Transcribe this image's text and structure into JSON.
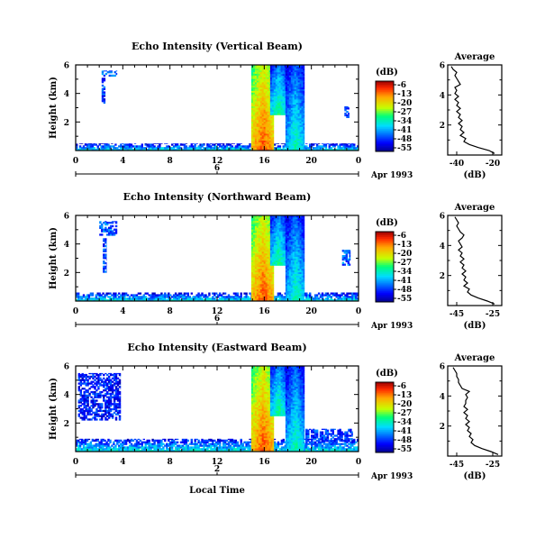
{
  "chart_data": [
    {
      "type": "heatmap",
      "title": "Echo Intensity (Vertical Beam)",
      "ylabel": "Height (km)",
      "xlabel": "",
      "xlim": [
        0,
        24
      ],
      "ylim": [
        0,
        6
      ],
      "xticks": [
        "0",
        "4",
        "8",
        "12",
        "16",
        "20",
        "0"
      ],
      "yticks": [
        "6",
        "4",
        "2"
      ],
      "date_marker_tick": "6",
      "date_label": "Apr 1993",
      "colorbar": {
        "unit": "(dB)",
        "ticks": [
          "-6",
          "-13",
          "-20",
          "-27",
          "-34",
          "-41",
          "-48",
          "-55"
        ],
        "range": [
          -55,
          -6
        ]
      },
      "average": {
        "title": "Average",
        "xlabel": "(dB)",
        "xticks": [
          "-40",
          "-20"
        ],
        "xlim": [
          -45,
          -15
        ],
        "yticks": [
          "6",
          "4",
          "2"
        ],
        "ylim": [
          0,
          6
        ],
        "profile": [
          [
            -19,
            0.1
          ],
          [
            -22,
            0.3
          ],
          [
            -28,
            0.5
          ],
          [
            -33,
            0.7
          ],
          [
            -36,
            0.9
          ],
          [
            -35,
            1.1
          ],
          [
            -38,
            1.3
          ],
          [
            -36,
            1.5
          ],
          [
            -38,
            1.7
          ],
          [
            -37,
            1.9
          ],
          [
            -39,
            2.1
          ],
          [
            -37,
            2.3
          ],
          [
            -39,
            2.5
          ],
          [
            -38,
            2.7
          ],
          [
            -40,
            2.9
          ],
          [
            -38,
            3.1
          ],
          [
            -40,
            3.3
          ],
          [
            -39,
            3.5
          ],
          [
            -41,
            3.7
          ],
          [
            -39,
            3.9
          ],
          [
            -41,
            4.1
          ],
          [
            -40,
            4.3
          ],
          [
            -41,
            4.5
          ],
          [
            -38,
            4.7
          ],
          [
            -39,
            4.9
          ],
          [
            -40,
            5.1
          ],
          [
            -41,
            5.3
          ],
          [
            -40,
            5.5
          ],
          [
            -42,
            5.7
          ],
          [
            -43,
            5.9
          ]
        ]
      },
      "features": [
        {
          "kind": "surface_layer",
          "t0": 0,
          "t1": 24,
          "z0": 0,
          "z1": 0.5,
          "db": -45
        },
        {
          "kind": "patch",
          "t0": 2.2,
          "t1": 3.5,
          "z0": 5.2,
          "z1": 5.6,
          "db": -44
        },
        {
          "kind": "patch",
          "t0": 2.2,
          "t1": 2.5,
          "z0": 3.3,
          "z1": 5.1,
          "db": -46
        },
        {
          "kind": "streak",
          "t0": 14.9,
          "t1": 16.8,
          "z0": 0,
          "z1": 6,
          "db": -12
        },
        {
          "kind": "streak",
          "t0": 16.5,
          "t1": 17.8,
          "z0": 2.5,
          "z1": 6,
          "db": -30
        },
        {
          "kind": "streak",
          "t0": 17.8,
          "t1": 19.4,
          "z0": 0,
          "z1": 6,
          "db": -32
        },
        {
          "kind": "patch",
          "t0": 22.8,
          "t1": 23.2,
          "z0": 2.3,
          "z1": 3.1,
          "db": -45
        }
      ]
    },
    {
      "type": "heatmap",
      "title": "Echo Intensity (Northward Beam)",
      "ylabel": "Height (km)",
      "xlabel": "",
      "xlim": [
        0,
        24
      ],
      "ylim": [
        0,
        6
      ],
      "xticks": [
        "0",
        "4",
        "8",
        "12",
        "16",
        "20",
        "0"
      ],
      "yticks": [
        "6",
        "4",
        "2"
      ],
      "date_marker_tick": "6",
      "date_label": "Apr 1993",
      "colorbar": {
        "unit": "(dB)",
        "ticks": [
          "-6",
          "-13",
          "-20",
          "-27",
          "-34",
          "-41",
          "-48",
          "-55"
        ],
        "range": [
          -55,
          -6
        ]
      },
      "average": {
        "title": "Average",
        "xlabel": "(dB)",
        "xticks": [
          "-45",
          "-25"
        ],
        "xlim": [
          -50,
          -20
        ],
        "yticks": [
          "6",
          "4",
          "2"
        ],
        "ylim": [
          0,
          6
        ],
        "profile": [
          [
            -24,
            0.1
          ],
          [
            -28,
            0.3
          ],
          [
            -33,
            0.5
          ],
          [
            -37,
            0.7
          ],
          [
            -39,
            0.9
          ],
          [
            -38,
            1.1
          ],
          [
            -41,
            1.3
          ],
          [
            -39,
            1.5
          ],
          [
            -41,
            1.7
          ],
          [
            -40,
            1.9
          ],
          [
            -42,
            2.1
          ],
          [
            -40,
            2.3
          ],
          [
            -42,
            2.5
          ],
          [
            -41,
            2.7
          ],
          [
            -43,
            2.9
          ],
          [
            -41,
            3.1
          ],
          [
            -43,
            3.3
          ],
          [
            -42,
            3.5
          ],
          [
            -44,
            3.7
          ],
          [
            -42,
            3.9
          ],
          [
            -43,
            4.1
          ],
          [
            -44,
            4.3
          ],
          [
            -42,
            4.5
          ],
          [
            -41,
            4.7
          ],
          [
            -43,
            4.9
          ],
          [
            -44,
            5.1
          ],
          [
            -45,
            5.3
          ],
          [
            -44,
            5.5
          ],
          [
            -45,
            5.7
          ],
          [
            -46,
            5.9
          ]
        ]
      },
      "features": [
        {
          "kind": "surface_layer",
          "t0": 0,
          "t1": 24,
          "z0": 0,
          "z1": 0.6,
          "db": -45
        },
        {
          "kind": "patch",
          "t0": 2.0,
          "t1": 3.5,
          "z0": 4.6,
          "z1": 5.6,
          "db": -44
        },
        {
          "kind": "patch",
          "t0": 2.3,
          "t1": 2.6,
          "z0": 2.0,
          "z1": 4.4,
          "db": -46
        },
        {
          "kind": "streak",
          "t0": 14.9,
          "t1": 16.8,
          "z0": 0,
          "z1": 6,
          "db": -12
        },
        {
          "kind": "streak",
          "t0": 16.5,
          "t1": 17.8,
          "z0": 2.5,
          "z1": 6,
          "db": -30
        },
        {
          "kind": "streak",
          "t0": 17.8,
          "t1": 19.4,
          "z0": 0,
          "z1": 6,
          "db": -32
        },
        {
          "kind": "patch",
          "t0": 22.6,
          "t1": 23.3,
          "z0": 2.5,
          "z1": 3.6,
          "db": -44
        }
      ]
    },
    {
      "type": "heatmap",
      "title": "Echo Intensity (Eastward Beam)",
      "ylabel": "Height (km)",
      "xlabel": "Local Time",
      "xlim": [
        0,
        24
      ],
      "ylim": [
        0,
        6
      ],
      "xticks": [
        "0",
        "4",
        "8",
        "12",
        "16",
        "20",
        "0"
      ],
      "yticks": [
        "6",
        "4",
        "2"
      ],
      "date_marker_tick": "2",
      "date_label": "Apr 1993",
      "colorbar": {
        "unit": "(dB)",
        "ticks": [
          "-6",
          "-13",
          "-20",
          "-27",
          "-34",
          "-41",
          "-48",
          "-55"
        ],
        "range": [
          -55,
          -6
        ]
      },
      "average": {
        "title": "Average",
        "xlabel": "(dB)",
        "xticks": [
          "-45",
          "-25"
        ],
        "xlim": [
          -50,
          -20
        ],
        "yticks": [
          "6",
          "4",
          "2"
        ],
        "ylim": [
          0,
          6
        ],
        "profile": [
          [
            -22,
            0.1
          ],
          [
            -26,
            0.3
          ],
          [
            -31,
            0.5
          ],
          [
            -35,
            0.7
          ],
          [
            -37,
            0.9
          ],
          [
            -36,
            1.1
          ],
          [
            -38,
            1.3
          ],
          [
            -37,
            1.5
          ],
          [
            -39,
            1.7
          ],
          [
            -38,
            1.9
          ],
          [
            -40,
            2.1
          ],
          [
            -38,
            2.3
          ],
          [
            -40,
            2.5
          ],
          [
            -39,
            2.7
          ],
          [
            -41,
            2.9
          ],
          [
            -39,
            3.1
          ],
          [
            -41,
            3.3
          ],
          [
            -40,
            3.5
          ],
          [
            -40,
            3.7
          ],
          [
            -39,
            3.9
          ],
          [
            -40,
            4.1
          ],
          [
            -38,
            4.3
          ],
          [
            -42,
            4.5
          ],
          [
            -43,
            4.7
          ],
          [
            -44,
            4.9
          ],
          [
            -44,
            5.1
          ],
          [
            -45,
            5.3
          ],
          [
            -45,
            5.5
          ],
          [
            -46,
            5.7
          ],
          [
            -47,
            5.9
          ]
        ]
      },
      "features": [
        {
          "kind": "surface_layer",
          "t0": 0,
          "t1": 24,
          "z0": 0,
          "z1": 0.9,
          "db": -44
        },
        {
          "kind": "patch",
          "t0": 0.2,
          "t1": 3.8,
          "z0": 2.2,
          "z1": 5.5,
          "db": -48
        },
        {
          "kind": "streak",
          "t0": 14.9,
          "t1": 16.8,
          "z0": 0,
          "z1": 6,
          "db": -12
        },
        {
          "kind": "streak",
          "t0": 16.5,
          "t1": 17.8,
          "z0": 2.5,
          "z1": 6,
          "db": -30
        },
        {
          "kind": "streak",
          "t0": 17.8,
          "t1": 19.4,
          "z0": 0,
          "z1": 6,
          "db": -32
        },
        {
          "kind": "patch",
          "t0": 19.5,
          "t1": 23.5,
          "z0": 0.7,
          "z1": 1.6,
          "db": -46
        }
      ]
    }
  ]
}
